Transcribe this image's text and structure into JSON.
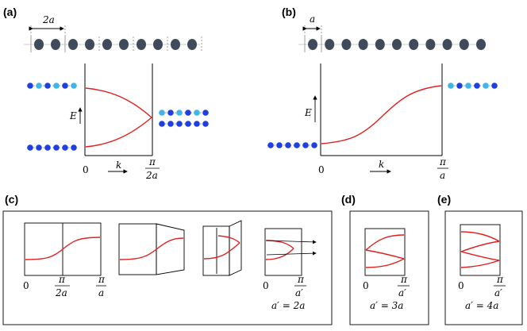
{
  "panels": {
    "a": {
      "label": "(a)",
      "spacing_label": "2a",
      "axis_e": "E",
      "axis_k": "k",
      "origin": "0",
      "edge_num": "π",
      "edge_den": "2a"
    },
    "b": {
      "label": "(b)",
      "spacing_label": "a",
      "axis_e": "E",
      "axis_k": "k",
      "origin": "0",
      "edge_num": "π",
      "edge_den": "a"
    },
    "c": {
      "label": "(c)",
      "origin": "0",
      "mid_num": "π",
      "mid_den": "2a",
      "edge_num": "π",
      "edge_den": "a",
      "fold_origin": "0",
      "fold_num": "π",
      "fold_den": "a′",
      "relation": "a′ = 2a"
    },
    "d": {
      "label": "(d)",
      "origin": "0",
      "edge_num": "π",
      "edge_den": "a′",
      "relation": "a′ = 3a"
    },
    "e": {
      "label": "(e)",
      "origin": "0",
      "edge_num": "π",
      "edge_den": "a′",
      "relation": "a′ = 4a"
    }
  },
  "colors": {
    "atom_gray": "#3f4a5a",
    "atom_blue": "#1f3fe0",
    "atom_cyan": "#3fb5e8",
    "band": "#e02020"
  }
}
